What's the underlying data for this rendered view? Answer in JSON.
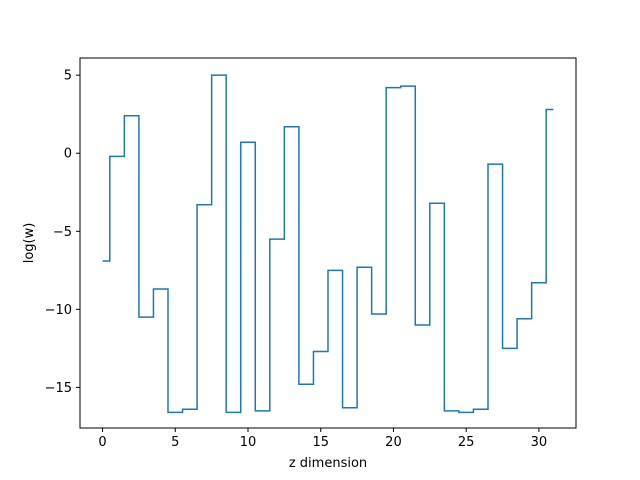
{
  "chart_data": {
    "type": "line",
    "drawstyle": "steps-post",
    "title": "",
    "xlabel": "z dimension",
    "ylabel": "log(w)",
    "xlim": [
      -1.55,
      32.55
    ],
    "ylim": [
      -17.6,
      6.1
    ],
    "xticks": [
      0,
      5,
      10,
      15,
      20,
      25,
      30
    ],
    "yticks": [
      -15,
      -10,
      -5,
      0,
      5
    ],
    "color": "#1f77b4",
    "grid": false,
    "series": [
      {
        "x": [
          0,
          0.5,
          1.5,
          2.5,
          3.5,
          4.5,
          5.5,
          6.5,
          7.5,
          8.5,
          9.5,
          10.5,
          11.5,
          12.5,
          13.5,
          14.5,
          15.5,
          16.5,
          17.5,
          18.5,
          19.5,
          20.5,
          21.5,
          22.5,
          23.5,
          24.5,
          25.5,
          26.5,
          27.5,
          28.5,
          29.5,
          30.5,
          31.0
        ],
        "values": [
          -6.9,
          -0.2,
          2.4,
          -10.5,
          -8.7,
          -16.6,
          -16.4,
          -3.3,
          5.0,
          -16.6,
          0.7,
          -16.5,
          -5.5,
          1.7,
          -14.8,
          -12.7,
          -7.5,
          -16.3,
          -7.3,
          -10.3,
          4.2,
          4.3,
          -11.0,
          -3.2,
          -16.5,
          -16.6,
          -16.4,
          -0.7,
          -12.5,
          -10.6,
          -8.3,
          2.8,
          2.8
        ]
      }
    ]
  }
}
